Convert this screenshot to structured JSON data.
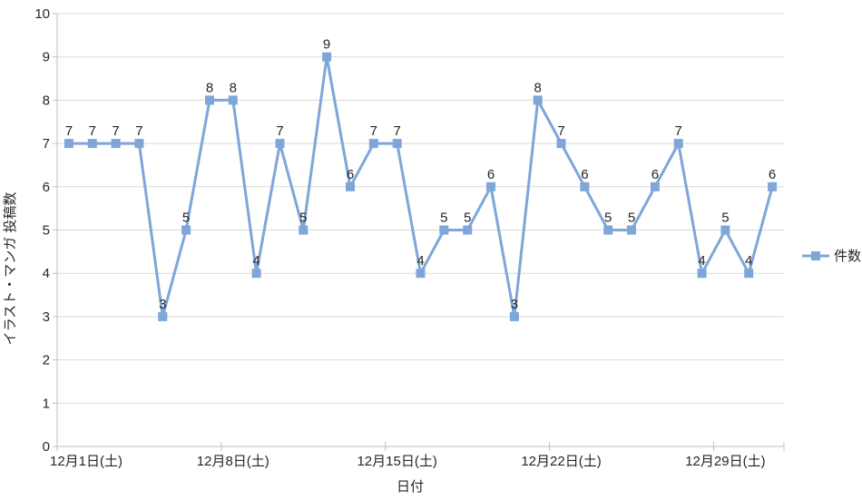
{
  "chart_data": {
    "type": "line",
    "title": "",
    "xlabel": "日付",
    "ylabel": "イラスト・マンガ 投稿数",
    "ylim": [
      0,
      10
    ],
    "grid": true,
    "legend_position": "right",
    "data_labels_visible": true,
    "x_axis": {
      "title": "日付",
      "tick_labels": [
        {
          "index": 0,
          "label": "12月1日(土)"
        },
        {
          "index": 7,
          "label": "12月8日(土)"
        },
        {
          "index": 14,
          "label": "12月15日(土)"
        },
        {
          "index": 21,
          "label": "12月22日(土)"
        },
        {
          "index": 28,
          "label": "12月29日(土)"
        }
      ]
    },
    "y_axis": {
      "title": "イラスト・マンガ 投稿数",
      "min": 0,
      "max": 10,
      "step": 1
    },
    "series": [
      {
        "name": "件数",
        "marker": "square",
        "color": "#7EA6D8",
        "values": [
          7,
          7,
          7,
          7,
          3,
          5,
          8,
          8,
          4,
          7,
          5,
          9,
          6,
          7,
          7,
          4,
          5,
          5,
          6,
          3,
          8,
          7,
          6,
          5,
          5,
          6,
          7,
          4,
          5,
          4,
          6
        ]
      }
    ]
  },
  "colors": {
    "series": "#7EA6D8",
    "gridline": "#D9D9D9",
    "axis_line": "#BFBFBF",
    "text": "#262626",
    "background": "#FFFFFF"
  }
}
